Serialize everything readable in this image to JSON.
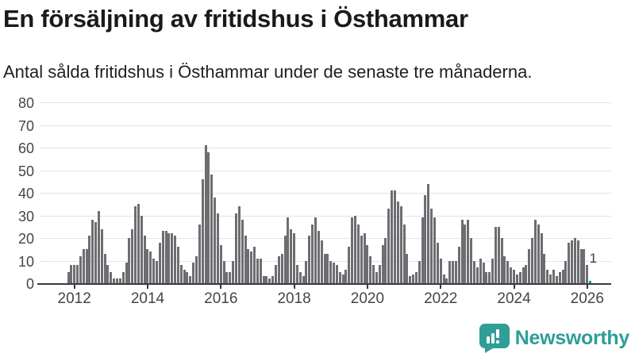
{
  "header": {
    "title": "En försäljning av fritidshus i Östhammar",
    "subtitle": "Antal sålda fritidshus i Östhammar under de senaste tre månaderna."
  },
  "annotation": {
    "last_value_label": "1"
  },
  "branding": {
    "name": "Newsworthy",
    "icon": "newsworthy-speech-bubble-chart-icon"
  },
  "colors": {
    "bar": "#6d6d72",
    "highlight": "#00a3a0",
    "axis": "#3a3a3a",
    "grid": "#e4e4e4",
    "title_text": "#1a1a1a",
    "tick_text": "#454545",
    "brand": "#2e9e96"
  },
  "chart_data": {
    "type": "bar",
    "title": "En försäljning av fritidshus i Östhammar",
    "subtitle": "Antal sålda fritidshus i Östhammar under de senaste tre månaderna.",
    "ylabel": "",
    "xlabel": "",
    "unit": "antal sålda fritidshus (rullande 3 månader)",
    "frequency": "monthly",
    "start_month": "2011-11",
    "end_month": "2026-02",
    "values": [
      5,
      8,
      8,
      8,
      12,
      15,
      15,
      21,
      28,
      27,
      32,
      24,
      13,
      8,
      5,
      2,
      2,
      2,
      5,
      9,
      20,
      24,
      34,
      35,
      30,
      21,
      15,
      14,
      11,
      10,
      18,
      23,
      23,
      22,
      22,
      21,
      16,
      8,
      6,
      5,
      3,
      9,
      12,
      26,
      46,
      61,
      58,
      48,
      38,
      31,
      17,
      10,
      5,
      5,
      10,
      31,
      34,
      28,
      21,
      15,
      14,
      16,
      11,
      11,
      3,
      3,
      2,
      3,
      8,
      12,
      13,
      21,
      29,
      24,
      22,
      8,
      5,
      3,
      10,
      21,
      26,
      29,
      23,
      19,
      13,
      13,
      10,
      9,
      8,
      5,
      4,
      6,
      16,
      29,
      30,
      26,
      21,
      22,
      17,
      12,
      8,
      5,
      8,
      17,
      20,
      33,
      41,
      41,
      36,
      34,
      26,
      13,
      3,
      4,
      5,
      10,
      29,
      39,
      44,
      33,
      29,
      18,
      11,
      4,
      2,
      10,
      10,
      10,
      16,
      28,
      26,
      28,
      20,
      10,
      7,
      11,
      9,
      5,
      5,
      11,
      25,
      25,
      20,
      12,
      10,
      7,
      6,
      4,
      5,
      7,
      8,
      15,
      20,
      28,
      26,
      22,
      13,
      6,
      4,
      6,
      3,
      5,
      6,
      10,
      18,
      19,
      20,
      19,
      15,
      15,
      8,
      1
    ],
    "highlight_last_bar": true,
    "last_bar_label": "1",
    "ylim": [
      0,
      80
    ],
    "yticks": [
      0,
      10,
      20,
      30,
      40,
      50,
      60,
      70,
      80
    ],
    "xtick_years": [
      2012,
      2014,
      2016,
      2018,
      2020,
      2022,
      2024,
      2026
    ],
    "grid": true,
    "legend": false
  }
}
